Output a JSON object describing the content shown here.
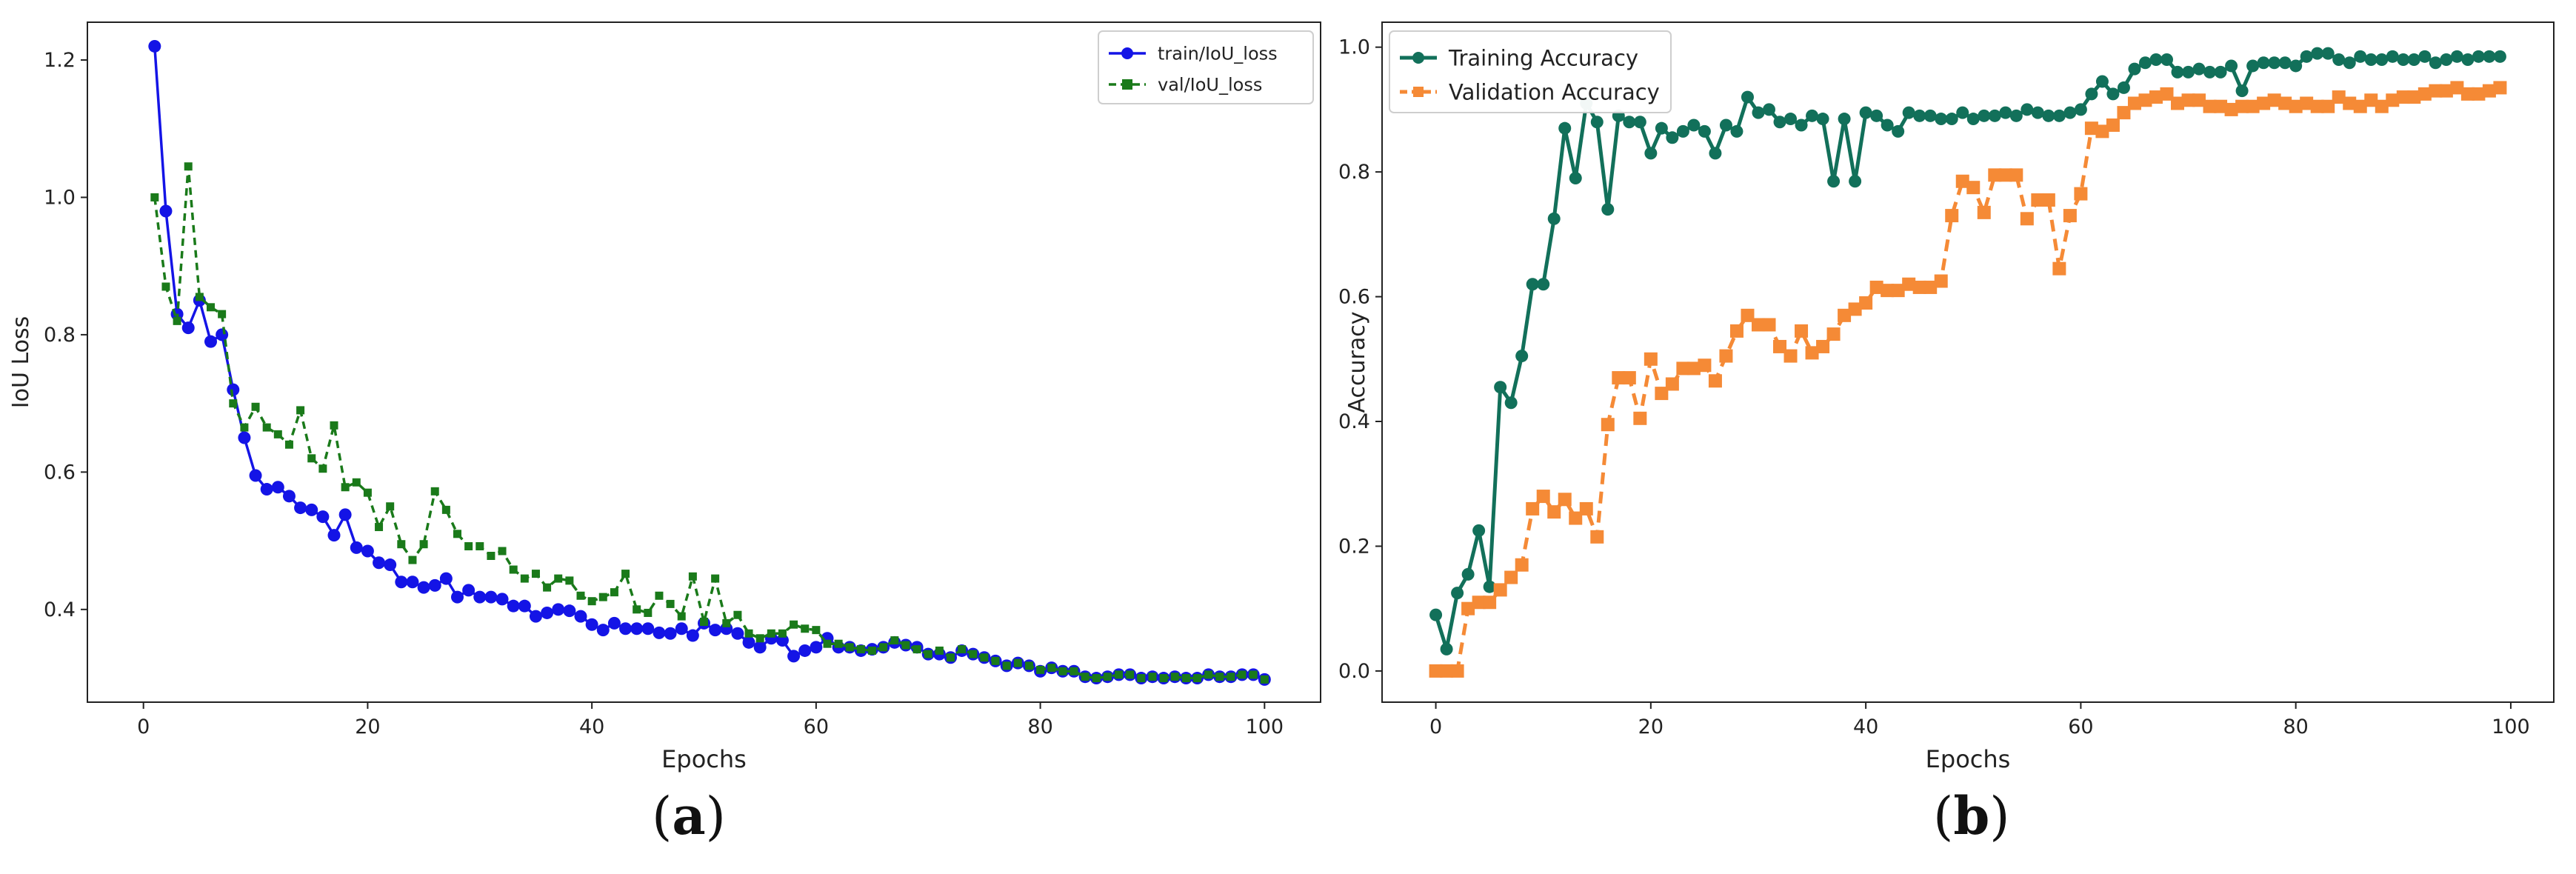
{
  "captions": {
    "a": "a",
    "b": "b"
  },
  "colors": {
    "train_loss": "#1414e6",
    "val_loss": "#1a7a1a",
    "train_acc": "#12705a",
    "val_acc": "#f58a36"
  },
  "chart_data": [
    {
      "type": "line",
      "panel": "a",
      "title": "",
      "xlabel": "Epochs",
      "ylabel": "IoU Loss",
      "xlim": [
        -5,
        105
      ],
      "ylim": [
        0.265,
        1.255
      ],
      "xticks": [
        0,
        20,
        40,
        60,
        80,
        100
      ],
      "yticks": [
        0.4,
        0.6,
        0.8,
        1.0,
        1.2
      ],
      "ytick_labels": [
        "0.4",
        "0.6",
        "0.8",
        "1.0",
        "1.2"
      ],
      "legend_position": "top-right",
      "series": [
        {
          "name": "train/IoU_loss",
          "style": "solid-circle",
          "x": [
            1,
            2,
            3,
            4,
            5,
            6,
            7,
            8,
            9,
            10,
            11,
            12,
            13,
            14,
            15,
            16,
            17,
            18,
            19,
            20,
            21,
            22,
            23,
            24,
            25,
            26,
            27,
            28,
            29,
            30,
            31,
            32,
            33,
            34,
            35,
            36,
            37,
            38,
            39,
            40,
            41,
            42,
            43,
            44,
            45,
            46,
            47,
            48,
            49,
            50,
            51,
            52,
            53,
            54,
            55,
            56,
            57,
            58,
            59,
            60,
            61,
            62,
            63,
            64,
            65,
            66,
            67,
            68,
            69,
            70,
            71,
            72,
            73,
            74,
            75,
            76,
            77,
            78,
            79,
            80,
            81,
            82,
            83,
            84,
            85,
            86,
            87,
            88,
            89,
            90,
            91,
            92,
            93,
            94,
            95,
            96,
            97,
            98,
            99,
            100
          ],
          "values": [
            1.22,
            0.98,
            0.83,
            0.81,
            0.85,
            0.79,
            0.8,
            0.72,
            0.65,
            0.595,
            0.575,
            0.578,
            0.565,
            0.548,
            0.545,
            0.535,
            0.508,
            0.538,
            0.49,
            0.485,
            0.468,
            0.465,
            0.44,
            0.44,
            0.432,
            0.435,
            0.445,
            0.418,
            0.428,
            0.418,
            0.418,
            0.415,
            0.405,
            0.405,
            0.39,
            0.395,
            0.4,
            0.398,
            0.39,
            0.378,
            0.37,
            0.38,
            0.372,
            0.372,
            0.372,
            0.366,
            0.365,
            0.372,
            0.362,
            0.38,
            0.37,
            0.372,
            0.365,
            0.352,
            0.345,
            0.358,
            0.355,
            0.332,
            0.34,
            0.345,
            0.358,
            0.345,
            0.345,
            0.34,
            0.342,
            0.345,
            0.352,
            0.348,
            0.345,
            0.335,
            0.335,
            0.33,
            0.34,
            0.335,
            0.33,
            0.325,
            0.318,
            0.322,
            0.318,
            0.31,
            0.315,
            0.31,
            0.31,
            0.302,
            0.3,
            0.302,
            0.305,
            0.305,
            0.3,
            0.302,
            0.3,
            0.302,
            0.3,
            0.3,
            0.305,
            0.302,
            0.302,
            0.305,
            0.305,
            0.298
          ]
        },
        {
          "name": "val/IoU_loss",
          "style": "dashed-square",
          "x": [
            1,
            2,
            3,
            4,
            5,
            6,
            7,
            8,
            9,
            10,
            11,
            12,
            13,
            14,
            15,
            16,
            17,
            18,
            19,
            20,
            21,
            22,
            23,
            24,
            25,
            26,
            27,
            28,
            29,
            30,
            31,
            32,
            33,
            34,
            35,
            36,
            37,
            38,
            39,
            40,
            41,
            42,
            43,
            44,
            45,
            46,
            47,
            48,
            49,
            50,
            51,
            52,
            53,
            54,
            55,
            56,
            57,
            58,
            59,
            60,
            61,
            62,
            63,
            64,
            65,
            66,
            67,
            68,
            69,
            70,
            71,
            72,
            73,
            74,
            75,
            76,
            77,
            78,
            79,
            80,
            81,
            82,
            83,
            84,
            85,
            86,
            87,
            88,
            89,
            90,
            91,
            92,
            93,
            94,
            95,
            96,
            97,
            98,
            99,
            100
          ],
          "values": [
            1.0,
            0.87,
            0.82,
            1.045,
            0.855,
            0.84,
            0.83,
            0.7,
            0.665,
            0.695,
            0.665,
            0.655,
            0.64,
            0.69,
            0.62,
            0.605,
            0.668,
            0.578,
            0.585,
            0.57,
            0.52,
            0.55,
            0.495,
            0.472,
            0.495,
            0.572,
            0.545,
            0.51,
            0.492,
            0.492,
            0.478,
            0.485,
            0.458,
            0.445,
            0.452,
            0.432,
            0.445,
            0.442,
            0.42,
            0.412,
            0.418,
            0.425,
            0.452,
            0.4,
            0.395,
            0.42,
            0.408,
            0.39,
            0.448,
            0.382,
            0.445,
            0.38,
            0.392,
            0.365,
            0.358,
            0.365,
            0.365,
            0.378,
            0.372,
            0.37,
            0.35,
            0.35,
            0.345,
            0.342,
            0.34,
            0.345,
            0.355,
            0.348,
            0.342,
            0.335,
            0.34,
            0.33,
            0.342,
            0.335,
            0.33,
            0.325,
            0.318,
            0.322,
            0.318,
            0.312,
            0.315,
            0.31,
            0.31,
            0.302,
            0.3,
            0.302,
            0.305,
            0.305,
            0.3,
            0.302,
            0.3,
            0.302,
            0.3,
            0.3,
            0.305,
            0.302,
            0.302,
            0.305,
            0.305,
            0.298
          ]
        }
      ]
    },
    {
      "type": "line",
      "panel": "b",
      "title": "",
      "xlabel": "Epochs",
      "ylabel": "Accuracy",
      "xlim": [
        -5,
        104
      ],
      "ylim": [
        -0.05,
        1.04
      ],
      "xticks": [
        0,
        20,
        40,
        60,
        80,
        100
      ],
      "yticks": [
        0.0,
        0.2,
        0.4,
        0.6,
        0.8,
        1.0
      ],
      "ytick_labels": [
        "0.0",
        "0.2",
        "0.4",
        "0.6",
        "0.8",
        "1.0"
      ],
      "legend_position": "top-left",
      "series": [
        {
          "name": "Training Accuracy",
          "style": "solid-circle",
          "x": [
            0,
            1,
            2,
            3,
            4,
            5,
            6,
            7,
            8,
            9,
            10,
            11,
            12,
            13,
            14,
            15,
            16,
            17,
            18,
            19,
            20,
            21,
            22,
            23,
            24,
            25,
            26,
            27,
            28,
            29,
            30,
            31,
            32,
            33,
            34,
            35,
            36,
            37,
            38,
            39,
            40,
            41,
            42,
            43,
            44,
            45,
            46,
            47,
            48,
            49,
            50,
            51,
            52,
            53,
            54,
            55,
            56,
            57,
            58,
            59,
            60,
            61,
            62,
            63,
            64,
            65,
            66,
            67,
            68,
            69,
            70,
            71,
            72,
            73,
            74,
            75,
            76,
            77,
            78,
            79,
            80,
            81,
            82,
            83,
            84,
            85,
            86,
            87,
            88,
            89,
            90,
            91,
            92,
            93,
            94,
            95,
            96,
            97,
            98,
            99
          ],
          "values": [
            0.09,
            0.035,
            0.125,
            0.155,
            0.225,
            0.135,
            0.455,
            0.43,
            0.505,
            0.62,
            0.62,
            0.725,
            0.87,
            0.79,
            0.91,
            0.88,
            0.74,
            0.89,
            0.88,
            0.88,
            0.83,
            0.87,
            0.855,
            0.865,
            0.875,
            0.865,
            0.83,
            0.875,
            0.865,
            0.92,
            0.895,
            0.9,
            0.88,
            0.885,
            0.875,
            0.89,
            0.885,
            0.785,
            0.885,
            0.785,
            0.895,
            0.89,
            0.875,
            0.865,
            0.895,
            0.89,
            0.89,
            0.885,
            0.885,
            0.895,
            0.885,
            0.89,
            0.89,
            0.895,
            0.89,
            0.9,
            0.895,
            0.89,
            0.89,
            0.895,
            0.9,
            0.925,
            0.945,
            0.925,
            0.935,
            0.965,
            0.975,
            0.98,
            0.98,
            0.96,
            0.96,
            0.965,
            0.96,
            0.96,
            0.97,
            0.93,
            0.97,
            0.975,
            0.975,
            0.975,
            0.97,
            0.985,
            0.99,
            0.99,
            0.98,
            0.975,
            0.985,
            0.98,
            0.98,
            0.985,
            0.98,
            0.98,
            0.985,
            0.975,
            0.98,
            0.985,
            0.98,
            0.985,
            0.985,
            0.985
          ]
        },
        {
          "name": "Validation Accuracy",
          "style": "dashed-square",
          "x": [
            0,
            1,
            2,
            3,
            4,
            5,
            6,
            7,
            8,
            9,
            10,
            11,
            12,
            13,
            14,
            15,
            16,
            17,
            18,
            19,
            20,
            21,
            22,
            23,
            24,
            25,
            26,
            27,
            28,
            29,
            30,
            31,
            32,
            33,
            34,
            35,
            36,
            37,
            38,
            39,
            40,
            41,
            42,
            43,
            44,
            45,
            46,
            47,
            48,
            49,
            50,
            51,
            52,
            53,
            54,
            55,
            56,
            57,
            58,
            59,
            60,
            61,
            62,
            63,
            64,
            65,
            66,
            67,
            68,
            69,
            70,
            71,
            72,
            73,
            74,
            75,
            76,
            77,
            78,
            79,
            80,
            81,
            82,
            83,
            84,
            85,
            86,
            87,
            88,
            89,
            90,
            91,
            92,
            93,
            94,
            95,
            96,
            97,
            98,
            99
          ],
          "values": [
            0.0,
            0.0,
            0.0,
            0.1,
            0.11,
            0.11,
            0.13,
            0.15,
            0.17,
            0.26,
            0.28,
            0.255,
            0.275,
            0.245,
            0.26,
            0.215,
            0.395,
            0.47,
            0.47,
            0.405,
            0.5,
            0.445,
            0.46,
            0.485,
            0.485,
            0.49,
            0.465,
            0.505,
            0.545,
            0.57,
            0.555,
            0.555,
            0.52,
            0.505,
            0.545,
            0.51,
            0.52,
            0.54,
            0.57,
            0.58,
            0.59,
            0.615,
            0.61,
            0.61,
            0.62,
            0.615,
            0.615,
            0.625,
            0.73,
            0.785,
            0.775,
            0.735,
            0.795,
            0.795,
            0.795,
            0.725,
            0.755,
            0.755,
            0.645,
            0.73,
            0.765,
            0.87,
            0.865,
            0.875,
            0.895,
            0.91,
            0.915,
            0.92,
            0.925,
            0.91,
            0.915,
            0.915,
            0.905,
            0.905,
            0.9,
            0.905,
            0.905,
            0.91,
            0.915,
            0.91,
            0.905,
            0.91,
            0.905,
            0.905,
            0.92,
            0.91,
            0.905,
            0.915,
            0.905,
            0.915,
            0.92,
            0.92,
            0.925,
            0.93,
            0.93,
            0.935,
            0.925,
            0.925,
            0.93,
            0.935
          ]
        }
      ]
    }
  ]
}
